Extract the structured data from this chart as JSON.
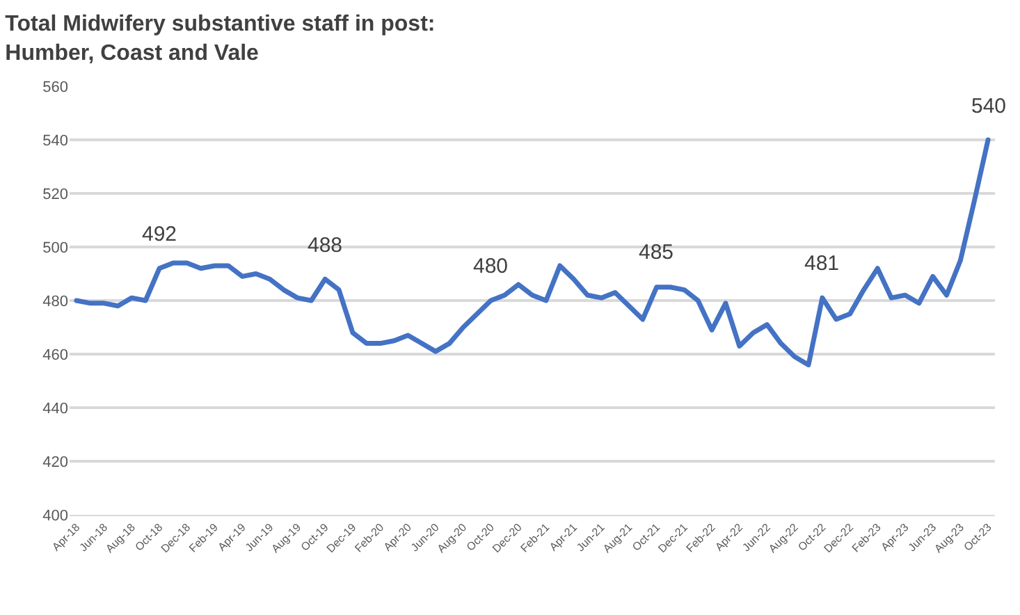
{
  "chart_data": {
    "type": "line",
    "title": "Total Midwifery substantive staff in post:\nHumber, Coast and Vale",
    "categories": [
      "Apr-18",
      null,
      "Jun-18",
      null,
      "Aug-18",
      null,
      "Oct-18",
      null,
      "Dec-18",
      null,
      "Feb-19",
      null,
      "Apr-19",
      null,
      "Jun-19",
      null,
      "Aug-19",
      null,
      "Oct-19",
      null,
      "Dec-19",
      null,
      "Feb-20",
      null,
      "Apr-20",
      null,
      "Jun-20",
      null,
      "Aug-20",
      null,
      "Oct-20",
      null,
      "Dec-20",
      null,
      "Feb-21",
      null,
      "Apr-21",
      null,
      "Jun-21",
      null,
      "Aug-21",
      null,
      "Oct-21",
      null,
      "Dec-21",
      null,
      "Feb-22",
      null,
      "Apr-22",
      null,
      "Jun-22",
      null,
      "Aug-22",
      null,
      "Oct-22",
      null,
      "Dec-22",
      null,
      "Feb-23",
      null,
      "Apr-23",
      null,
      "Jun-23",
      null,
      "Aug-23",
      null,
      "Oct-23"
    ],
    "series": [
      {
        "color": "#4472c4",
        "values": [
          480,
          479,
          479,
          478,
          481,
          480,
          492,
          494,
          494,
          492,
          493,
          493,
          489,
          490,
          488,
          484,
          481,
          480,
          488,
          484,
          468,
          464,
          464,
          465,
          467,
          464,
          461,
          464,
          470,
          475,
          480,
          482,
          486,
          482,
          480,
          493,
          488,
          482,
          481,
          483,
          478,
          473,
          485,
          485,
          484,
          480,
          469,
          479,
          463,
          468,
          471,
          464,
          459,
          456,
          481,
          473,
          475,
          484,
          492,
          481,
          482,
          479,
          489,
          482,
          495,
          517,
          540
        ]
      }
    ],
    "ylim": [
      400,
      560
    ],
    "yticks": [
      400,
      420,
      440,
      460,
      480,
      500,
      520,
      540,
      560
    ],
    "grid": "y",
    "marker": "none",
    "line_style": "solid",
    "annotations": [
      {
        "text": "492",
        "x": "Oct-18",
        "y": 492
      },
      {
        "text": "488",
        "x": "Oct-19",
        "y": 488
      },
      {
        "text": "480",
        "x": "Oct-20",
        "y": 480
      },
      {
        "text": "485",
        "x": "Oct-21",
        "y": 485
      },
      {
        "text": "481",
        "x": "Oct-22",
        "y": 481
      },
      {
        "text": "540",
        "x": "Oct-23",
        "y": 540
      }
    ]
  }
}
